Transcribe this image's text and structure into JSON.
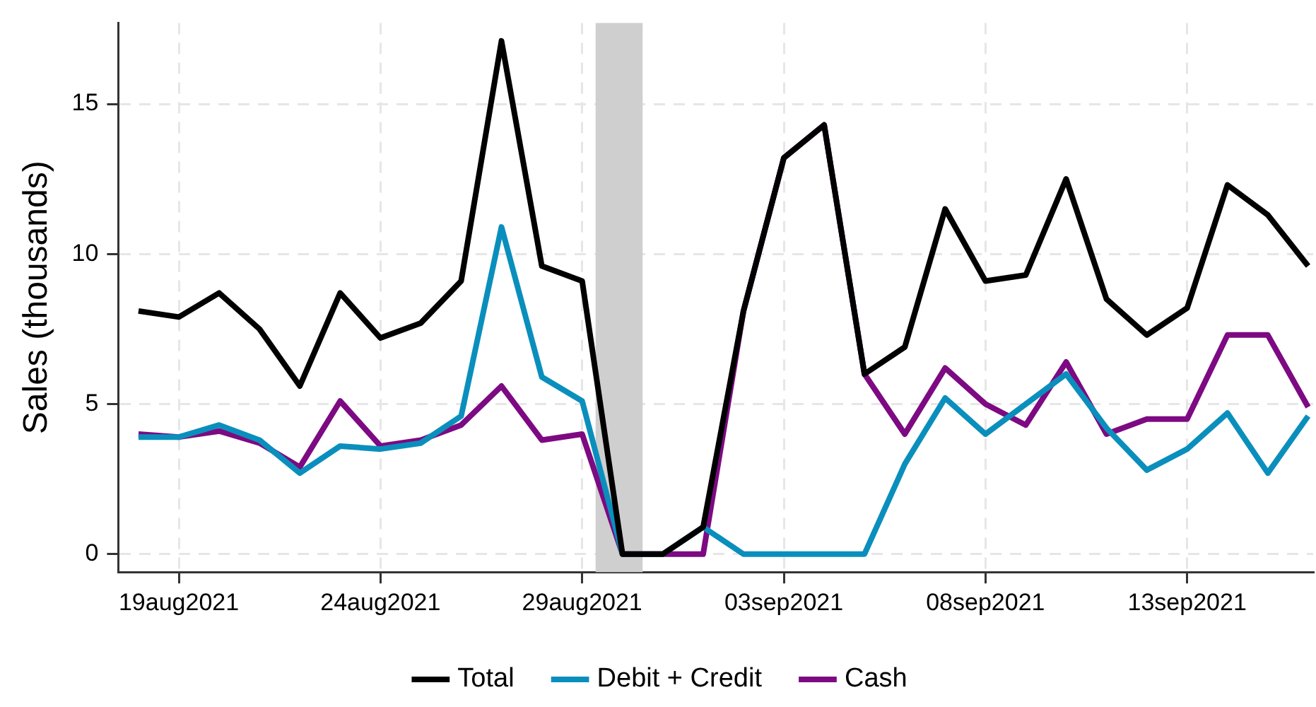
{
  "chart_data": {
    "type": "line",
    "ylabel": "Sales (thousands)",
    "x": [
      "2021-08-18",
      "2021-08-19",
      "2021-08-20",
      "2021-08-21",
      "2021-08-22",
      "2021-08-23",
      "2021-08-24",
      "2021-08-25",
      "2021-08-26",
      "2021-08-27",
      "2021-08-28",
      "2021-08-29",
      "2021-08-30",
      "2021-08-31",
      "2021-09-01",
      "2021-09-02",
      "2021-09-03",
      "2021-09-04",
      "2021-09-05",
      "2021-09-06",
      "2021-09-07",
      "2021-09-08",
      "2021-09-09",
      "2021-09-10",
      "2021-09-11",
      "2021-09-12",
      "2021-09-13",
      "2021-09-14",
      "2021-09-15",
      "2021-09-16"
    ],
    "series": [
      {
        "name": "Total",
        "color": "#000000",
        "values": [
          8.1,
          7.9,
          8.7,
          7.5,
          5.6,
          8.7,
          7.2,
          7.7,
          9.1,
          17.1,
          9.6,
          9.1,
          0,
          0,
          0.9,
          8.1,
          13.2,
          14.3,
          6.0,
          6.9,
          11.5,
          9.1,
          9.3,
          12.5,
          8.5,
          7.3,
          8.2,
          12.3,
          11.3,
          9.6
        ]
      },
      {
        "name": "Debit + Credit",
        "color": "#0a8fbd",
        "values": [
          3.9,
          3.9,
          4.3,
          3.8,
          2.7,
          3.6,
          3.5,
          3.7,
          4.6,
          10.9,
          5.9,
          5.1,
          0,
          0,
          0.9,
          0,
          0,
          0,
          0,
          3.0,
          5.2,
          4.0,
          5.0,
          6.0,
          4.2,
          2.8,
          3.5,
          4.7,
          2.7,
          4.6
        ]
      },
      {
        "name": "Cash",
        "color": "#7d0a82",
        "values": [
          4.0,
          3.9,
          4.1,
          3.7,
          2.9,
          5.1,
          3.6,
          3.8,
          4.3,
          5.6,
          3.8,
          4.0,
          0,
          0,
          0,
          8.1,
          13.2,
          14.3,
          6.0,
          4.0,
          6.2,
          5.0,
          4.3,
          6.4,
          4.0,
          4.5,
          4.5,
          7.3,
          7.3,
          4.9
        ]
      }
    ],
    "xlim": [
      "2021-08-17T12:00",
      "2021-09-16T03:00"
    ],
    "xticks": [
      {
        "value": "2021-08-19",
        "label": "19aug2021"
      },
      {
        "value": "2021-08-24",
        "label": "24aug2021"
      },
      {
        "value": "2021-08-29",
        "label": "29aug2021"
      },
      {
        "value": "2021-09-03",
        "label": "03sep2021"
      },
      {
        "value": "2021-09-08",
        "label": "08sep2021"
      },
      {
        "value": "2021-09-13",
        "label": "13sep2021"
      }
    ],
    "ylim": [
      -0.6,
      17.7
    ],
    "yticks": [
      0,
      5,
      10,
      15
    ],
    "bands": [
      {
        "axis": "x",
        "from": "2021-08-29T08:00",
        "to": "2021-08-30T12:00",
        "color": "#cfcfcf"
      }
    ],
    "grid": true,
    "legend": "bottom",
    "marker": "none",
    "line_style": "solid"
  }
}
